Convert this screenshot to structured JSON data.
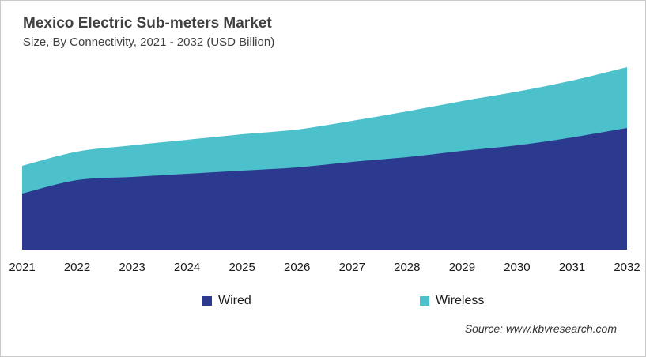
{
  "chart_data": {
    "type": "area",
    "stacked": true,
    "title": "Mexico Electric Sub-meters Market",
    "subtitle": "Size, By Connectivity, 2021 - 2032 (USD Billion)",
    "categories": [
      "2021",
      "2022",
      "2023",
      "2024",
      "2025",
      "2026",
      "2027",
      "2028",
      "2029",
      "2030",
      "2031",
      "2032"
    ],
    "series": [
      {
        "name": "Wired",
        "color": "#2B3A8E",
        "values": [
          0.71,
          0.88,
          0.92,
          0.96,
          1.0,
          1.04,
          1.11,
          1.17,
          1.25,
          1.32,
          1.42,
          1.54
        ]
      },
      {
        "name": "Wireless",
        "color": "#4CC0CB",
        "values": [
          0.35,
          0.36,
          0.4,
          0.43,
          0.46,
          0.48,
          0.52,
          0.58,
          0.63,
          0.68,
          0.72,
          0.77
        ]
      }
    ],
    "xlabel": "",
    "ylabel": "",
    "ylim": [
      0,
      2.4
    ],
    "grid": false,
    "y_axis_visible": false,
    "legend_position": "bottom"
  },
  "source": {
    "text": "Source: www.kbvresearch.com"
  },
  "colors": {
    "background": "#ffffff",
    "border": "#c9c9c9",
    "title_text": "#404040",
    "axis_text": "#1a1a1a"
  }
}
